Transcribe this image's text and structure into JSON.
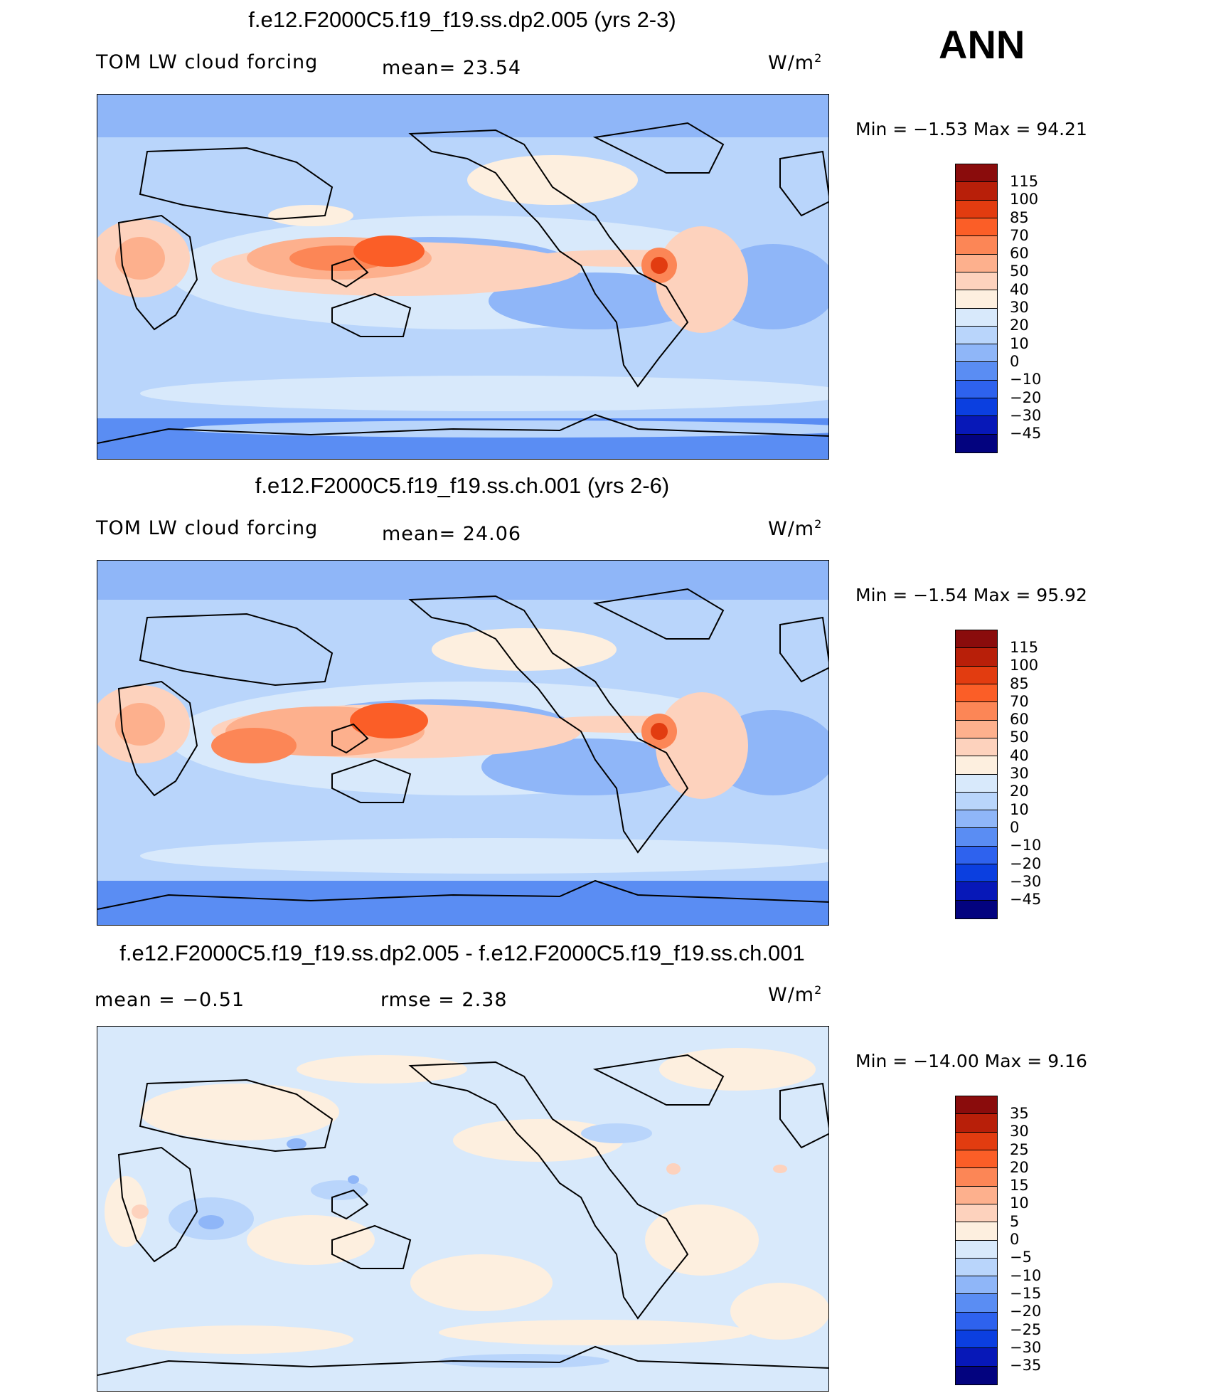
{
  "season": "ANN",
  "panels": [
    {
      "title": "f.e12.F2000C5.f19_f19.ss.dp2.005 (yrs 2-3)",
      "variable": "TOM LW cloud forcing",
      "stat_text": "mean=   23.54",
      "units": "W/m",
      "units_sup": "2",
      "minmax": "Min =   −1.53 Max =   94.21",
      "colorbar": {
        "labels": [
          "115",
          "100",
          "85",
          "70",
          "60",
          "50",
          "40",
          "30",
          "20",
          "10",
          "0",
          "−10",
          "−20",
          "−30",
          "−45"
        ],
        "colors": [
          "#8a0c0c",
          "#b81f09",
          "#e23c10",
          "#fb5e27",
          "#fc8656",
          "#fdb08d",
          "#fdd2bd",
          "#fdefdf",
          "#d8e9fb",
          "#b9d5fb",
          "#8fb6f8",
          "#5a8df3",
          "#2e62ee",
          "#0b3fe0",
          "#0718b8",
          "#03037f"
        ]
      }
    },
    {
      "title": "f.e12.F2000C5.f19_f19.ss.ch.001 (yrs 2-6)",
      "variable": "TOM LW cloud forcing",
      "stat_text": "mean=   24.06",
      "units": "W/m",
      "units_sup": "2",
      "minmax": "Min =   −1.54 Max =   95.92",
      "colorbar": {
        "labels": [
          "115",
          "100",
          "85",
          "70",
          "60",
          "50",
          "40",
          "30",
          "20",
          "10",
          "0",
          "−10",
          "−20",
          "−30",
          "−45"
        ],
        "colors": [
          "#8a0c0c",
          "#b81f09",
          "#e23c10",
          "#fb5e27",
          "#fc8656",
          "#fdb08d",
          "#fdd2bd",
          "#fdefdf",
          "#d8e9fb",
          "#b9d5fb",
          "#8fb6f8",
          "#5a8df3",
          "#2e62ee",
          "#0b3fe0",
          "#0718b8",
          "#03037f"
        ]
      }
    },
    {
      "title": "f.e12.F2000C5.f19_f19.ss.dp2.005 - f.e12.F2000C5.f19_f19.ss.ch.001",
      "stat_mean": "mean =   −0.51",
      "stat_rmse": "rmse =    2.38",
      "units": "W/m",
      "units_sup": "2",
      "minmax": "Min = −14.00 Max =    9.16",
      "colorbar": {
        "labels": [
          "35",
          "30",
          "25",
          "20",
          "15",
          "10",
          "5",
          "0",
          "−5",
          "−10",
          "−15",
          "−20",
          "−25",
          "−30",
          "−35"
        ],
        "colors": [
          "#8a0c0c",
          "#b81f09",
          "#e23c10",
          "#fb5e27",
          "#fc8656",
          "#fdb08d",
          "#fdd2bd",
          "#fdefdf",
          "#d8e9fb",
          "#b9d5fb",
          "#8fb6f8",
          "#5a8df3",
          "#2e62ee",
          "#0b3fe0",
          "#0718b8",
          "#03037f"
        ]
      }
    }
  ]
}
